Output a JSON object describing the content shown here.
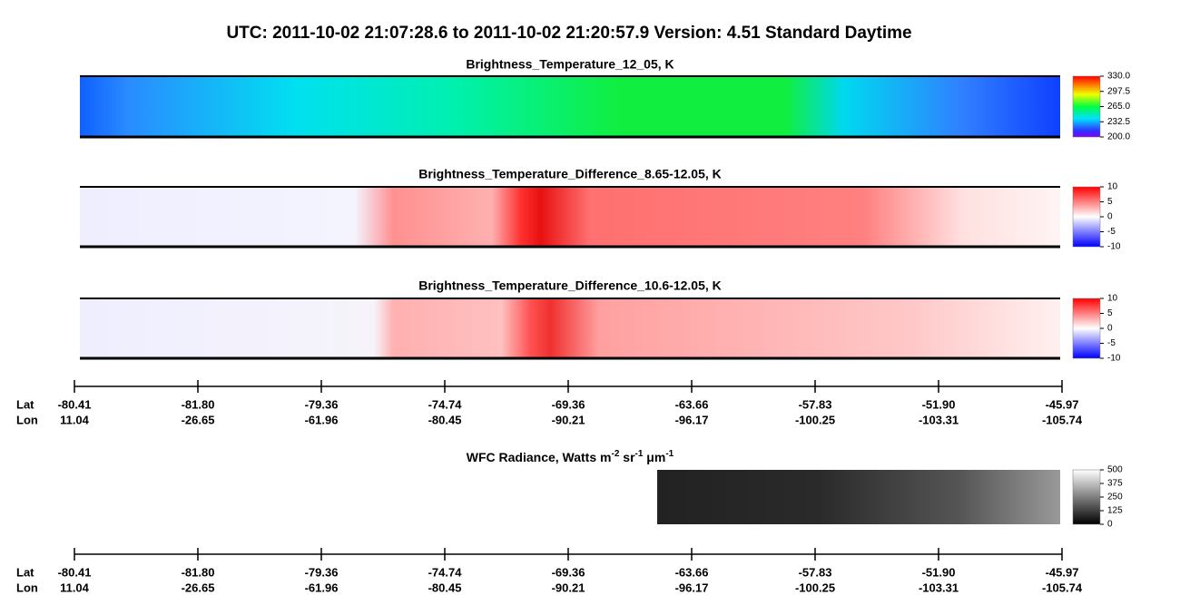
{
  "header": {
    "title": "UTC:  2011-10-02   21:07:28.6  to  2011-10-02   21:20:57.9    Version: 4.51  Standard Daytime"
  },
  "panels": [
    {
      "title": "Brightness_Temperature_12_05, K",
      "lim": [
        200,
        330
      ],
      "ticks": [
        {
          "value": 330,
          "label": "330.0"
        },
        {
          "value": 297.5,
          "label": "297.5"
        },
        {
          "value": 265,
          "label": "265.0"
        },
        {
          "value": 232.5,
          "label": "232.5"
        },
        {
          "value": 200,
          "label": "200.0"
        }
      ]
    },
    {
      "title": "Brightness_Temperature_Difference_8.65-12.05, K",
      "lim": [
        -10,
        10
      ],
      "ticks": [
        10,
        5,
        0,
        -5,
        -10
      ]
    },
    {
      "title": "Brightness_Temperature_Difference_10.6-12.05, K",
      "lim": [
        -10,
        10
      ],
      "ticks": [
        10,
        5,
        0,
        -5,
        -10
      ]
    },
    {
      "title_parts": [
        "WFC Radiance, Watts m",
        "-2",
        " sr",
        "-1",
        " μm",
        "-1"
      ],
      "lim": [
        0,
        500
      ],
      "ticks": [
        500,
        375,
        250,
        125,
        0
      ]
    }
  ],
  "axes": [
    {
      "lat_label": "Lat",
      "lon_label": "Lon",
      "lat": [
        "-80.41",
        "-81.80",
        "-79.36",
        "-74.74",
        "-69.36",
        "-63.66",
        "-57.83",
        "-51.90",
        "-45.97"
      ],
      "lon": [
        "11.04",
        "-26.65",
        "-61.96",
        "-80.45",
        "-90.21",
        "-96.17",
        "-100.25",
        "-103.31",
        "-105.74"
      ]
    },
    {
      "lat_label": "Lat",
      "lon_label": "Lon",
      "lat": [
        "-80.41",
        "-81.80",
        "-79.36",
        "-74.74",
        "-69.36",
        "-63.66",
        "-57.83",
        "-51.90",
        "-45.97"
      ],
      "lon": [
        "11.04",
        "-26.65",
        "-61.96",
        "-80.45",
        "-90.21",
        "-96.17",
        "-100.25",
        "-103.31",
        "-105.74"
      ]
    }
  ]
}
